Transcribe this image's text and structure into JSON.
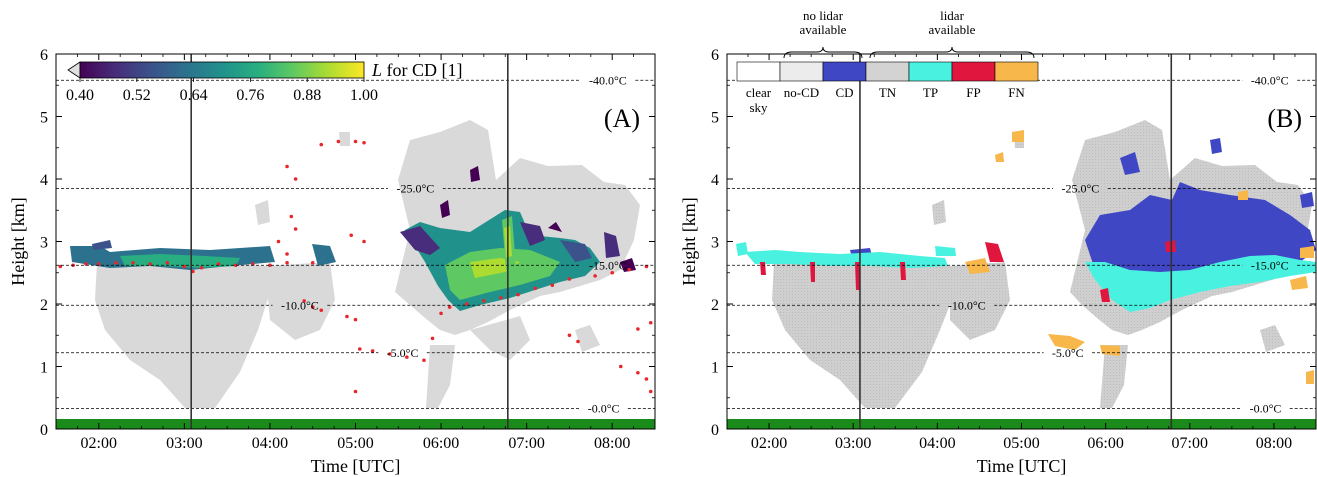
{
  "chart_data": [
    {
      "type": "heatmap",
      "panel_label": "(A)",
      "xlabel": "Time [UTC]",
      "ylabel": "Height [km]",
      "xlim": [
        1.5,
        8.5
      ],
      "ylim": [
        0,
        6
      ],
      "xticks": [
        2,
        3,
        4,
        5,
        6,
        7,
        8
      ],
      "xtick_labels": [
        "02:00",
        "03:00",
        "04:00",
        "05:00",
        "06:00",
        "07:00",
        "08:00"
      ],
      "yticks": [
        0,
        1,
        2,
        3,
        4,
        5,
        6
      ],
      "ytick_labels": [
        "0",
        "1",
        "2",
        "3",
        "4",
        "5",
        "6"
      ],
      "vertical_lines": [
        3.08,
        6.78
      ],
      "isotherms": [
        {
          "height": 0.33,
          "label": "-0.0°C",
          "label_x": 7.9
        },
        {
          "height": 1.22,
          "label": "-5.0°C",
          "label_x": 5.55
        },
        {
          "height": 1.98,
          "label": "-10.0°C",
          "label_x": 4.35
        },
        {
          "height": 2.62,
          "label": "-15.0°C",
          "label_x": 7.95
        },
        {
          "height": 3.85,
          "label": "-25.0°C",
          "label_x": 5.7
        },
        {
          "height": 5.58,
          "label": "-40.0°C",
          "label_x": 7.95
        }
      ],
      "colorbar": {
        "label": "L for CD [1]",
        "label_var": "L",
        "label_rest": " for CD [1]",
        "ticks": [
          0.4,
          0.52,
          0.64,
          0.76,
          0.88,
          1.0
        ],
        "tick_labels": [
          "0.40",
          "0.52",
          "0.64",
          "0.76",
          "0.88",
          "1.00"
        ],
        "range": [
          0.4,
          1.0
        ],
        "colormap": "viridis",
        "extend": "min"
      },
      "background_cloud_color": "#d9d9d9",
      "lidar_base_color": "#e8262c",
      "surface_color": "#1a8a1a",
      "lidar_base_points": [
        [
          1.55,
          2.6
        ],
        [
          1.7,
          2.62
        ],
        [
          1.85,
          2.64
        ],
        [
          2.0,
          2.64
        ],
        [
          2.2,
          2.66
        ],
        [
          2.4,
          2.66
        ],
        [
          2.6,
          2.64
        ],
        [
          2.8,
          2.66
        ],
        [
          3.0,
          2.6
        ],
        [
          3.1,
          2.52
        ],
        [
          3.2,
          2.58
        ],
        [
          3.4,
          2.64
        ],
        [
          3.6,
          2.62
        ],
        [
          3.8,
          2.64
        ],
        [
          4.0,
          2.62
        ],
        [
          4.2,
          2.66
        ],
        [
          4.5,
          2.66
        ],
        [
          4.1,
          3.0
        ],
        [
          4.2,
          2.8
        ],
        [
          4.5,
          1.95
        ],
        [
          4.6,
          1.9
        ],
        [
          4.9,
          1.8
        ],
        [
          5.0,
          1.75
        ],
        [
          4.4,
          2.05
        ],
        [
          4.25,
          3.4
        ],
        [
          4.3,
          3.2
        ],
        [
          4.6,
          4.55
        ],
        [
          4.8,
          4.6
        ],
        [
          5.0,
          4.6
        ],
        [
          5.1,
          4.58
        ],
        [
          4.2,
          4.2
        ],
        [
          4.3,
          4.0
        ],
        [
          5.05,
          1.28
        ],
        [
          5.2,
          1.25
        ],
        [
          5.4,
          1.2
        ],
        [
          5.6,
          1.15
        ],
        [
          5.8,
          1.1
        ],
        [
          5.9,
          1.45
        ],
        [
          6.0,
          1.85
        ],
        [
          6.1,
          1.95
        ],
        [
          6.3,
          2.0
        ],
        [
          6.5,
          2.05
        ],
        [
          6.7,
          2.1
        ],
        [
          6.9,
          2.15
        ],
        [
          7.1,
          2.25
        ],
        [
          7.3,
          2.3
        ],
        [
          7.5,
          2.4
        ],
        [
          7.8,
          2.45
        ],
        [
          8.0,
          2.5
        ],
        [
          8.2,
          2.55
        ],
        [
          8.4,
          2.6
        ],
        [
          8.1,
          1.0
        ],
        [
          8.3,
          0.9
        ],
        [
          8.4,
          0.8
        ],
        [
          8.45,
          0.6
        ],
        [
          8.3,
          1.6
        ],
        [
          8.45,
          1.7
        ],
        [
          5.0,
          0.6
        ],
        [
          4.95,
          3.1
        ],
        [
          5.1,
          3.0
        ],
        [
          7.5,
          1.5
        ],
        [
          7.6,
          1.4
        ]
      ]
    },
    {
      "type": "heatmap",
      "panel_label": "(B)",
      "xlabel": "Time [UTC]",
      "ylabel": "Height [km]",
      "xlim": [
        1.5,
        8.5
      ],
      "ylim": [
        0,
        6
      ],
      "xticks": [
        2,
        3,
        4,
        5,
        6,
        7,
        8
      ],
      "xtick_labels": [
        "02:00",
        "03:00",
        "04:00",
        "05:00",
        "06:00",
        "07:00",
        "08:00"
      ],
      "yticks": [
        0,
        1,
        2,
        3,
        4,
        5,
        6
      ],
      "ytick_labels": [
        "0",
        "1",
        "2",
        "3",
        "4",
        "5",
        "6"
      ],
      "vertical_lines": [
        3.08,
        6.78
      ],
      "isotherms": [
        {
          "height": 0.33,
          "label": "-0.0°C",
          "label_x": 7.9
        },
        {
          "height": 1.22,
          "label": "-5.0°C",
          "label_x": 5.55
        },
        {
          "height": 1.98,
          "label": "-10.0°C",
          "label_x": 4.35
        },
        {
          "height": 2.62,
          "label": "-15.0°C",
          "label_x": 7.95
        },
        {
          "height": 3.85,
          "label": "-25.0°C",
          "label_x": 5.7
        },
        {
          "height": 5.58,
          "label": "-40.0°C",
          "label_x": 7.95
        }
      ],
      "legend": {
        "groups": [
          {
            "label_lines": [
              "no lidar",
              "available"
            ],
            "spans": [
              "no-CD",
              "CD"
            ]
          },
          {
            "label_lines": [
              "lidar",
              "available"
            ],
            "spans": [
              "TN",
              "TP",
              "FP",
              "FN"
            ]
          }
        ],
        "categories": [
          {
            "key": "clear-sky",
            "label_lines": [
              "clear",
              "sky"
            ],
            "color": "#ffffff"
          },
          {
            "key": "no-CD",
            "label_lines": [
              "no-CD"
            ],
            "color": "#ececec"
          },
          {
            "key": "CD",
            "label_lines": [
              "CD"
            ],
            "color": "#4047c4"
          },
          {
            "key": "TN",
            "label_lines": [
              "TN"
            ],
            "color": "#d3d3d3"
          },
          {
            "key": "TP",
            "label_lines": [
              "TP"
            ],
            "color": "#49f2e0"
          },
          {
            "key": "FP",
            "label_lines": [
              "FP"
            ],
            "color": "#e0163f"
          },
          {
            "key": "FN",
            "label_lines": [
              "FN"
            ],
            "color": "#f7b74a"
          }
        ]
      },
      "surface_color": "#1a8a1a"
    }
  ]
}
